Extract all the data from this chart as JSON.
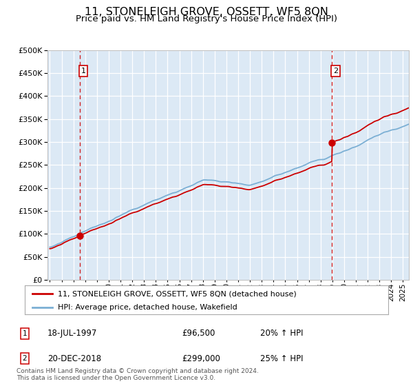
{
  "title": "11, STONELEIGH GROVE, OSSETT, WF5 8QN",
  "subtitle": "Price paid vs. HM Land Registry's House Price Index (HPI)",
  "legend_line1": "11, STONELEIGH GROVE, OSSETT, WF5 8QN (detached house)",
  "legend_line2": "HPI: Average price, detached house, Wakefield",
  "table_rows": [
    [
      "1",
      "18-JUL-1997",
      "£96,500",
      "20% ↑ HPI"
    ],
    [
      "2",
      "20-DEC-2018",
      "£299,000",
      "25% ↑ HPI"
    ]
  ],
  "footnote": "Contains HM Land Registry data © Crown copyright and database right 2024.\nThis data is licensed under the Open Government Licence v3.0.",
  "sale1_year": 1997.54,
  "sale1_price": 96500,
  "sale2_year": 2018.97,
  "sale2_price": 299000,
  "ylim": [
    0,
    500000
  ],
  "yticks": [
    0,
    50000,
    100000,
    150000,
    200000,
    250000,
    300000,
    350000,
    400000,
    450000,
    500000
  ],
  "xlim_start": 1995,
  "xlim_end": 2025.5,
  "background_color": "#dce9f5",
  "grid_color": "#ffffff",
  "red_line_color": "#cc0000",
  "blue_line_color": "#7bafd4",
  "dashed_line_color": "#cc0000",
  "sale_dot_color": "#cc0000",
  "title_fontsize": 11.5,
  "subtitle_fontsize": 9.5,
  "annotation_box_color": "#cc0000"
}
